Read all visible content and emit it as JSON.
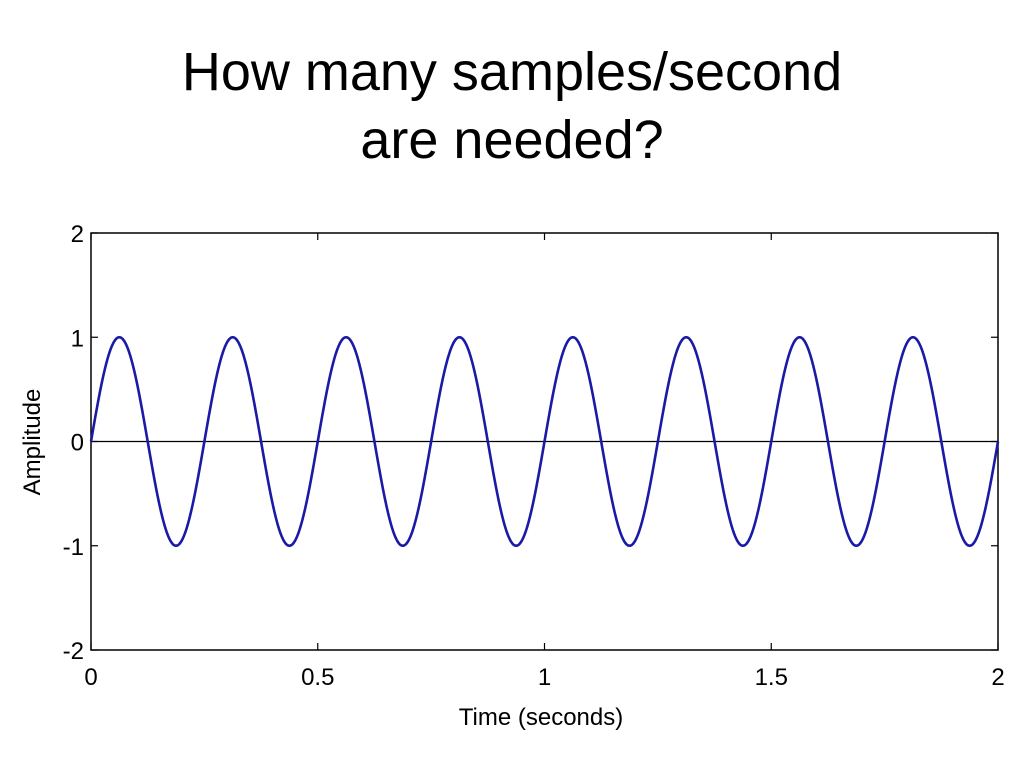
{
  "slide": {
    "title_line1": "How many samples/second",
    "title_line2": "are needed?"
  },
  "chart_data": {
    "type": "line",
    "title": "",
    "xlabel": "Time (seconds)",
    "ylabel": "Amplitude",
    "xlim": [
      0,
      2
    ],
    "ylim": [
      -2,
      2
    ],
    "xticks": [
      0,
      0.5,
      1,
      1.5,
      2
    ],
    "xtick_labels": [
      "0",
      "0.5",
      "1",
      "1.5",
      "2"
    ],
    "yticks": [
      2,
      1,
      0,
      -1,
      -2
    ],
    "ytick_labels": [
      "2",
      "1",
      "0",
      "-1",
      "-2"
    ],
    "grid": false,
    "legend": "none",
    "series": [
      {
        "function": "sine",
        "amplitude": 1,
        "frequency_hz": 4,
        "phase": 0,
        "color": "#1a1aa6"
      }
    ],
    "reference_line": {
      "y": 0,
      "color": "#000000"
    },
    "axis_color": "#000000"
  }
}
